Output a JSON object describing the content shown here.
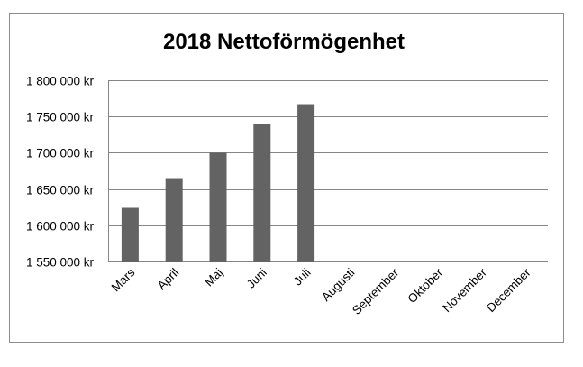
{
  "chart_data": {
    "type": "bar",
    "title": "2018 Nettoförmögenhet",
    "xlabel": "",
    "ylabel": "",
    "categories": [
      "Mars",
      "April",
      "Maj",
      "Juni",
      "Juli",
      "Augusti",
      "September",
      "Oktober",
      "November",
      "December"
    ],
    "values": [
      1624000,
      1665000,
      1700000,
      1740000,
      1767000,
      null,
      null,
      null,
      null,
      null
    ],
    "ylim": [
      1550000,
      1800000
    ],
    "ytick_values": [
      1550000,
      1600000,
      1650000,
      1700000,
      1750000,
      1800000
    ],
    "ytick_labels": [
      "1 550 000 kr",
      "1 600 000 kr",
      "1 650 000 kr",
      "1 700 000 kr",
      "1 750 000 kr",
      "1 800 000 kr"
    ],
    "grid": true,
    "legend": "none",
    "bar_color": "#636363",
    "grid_color": "#868686"
  }
}
